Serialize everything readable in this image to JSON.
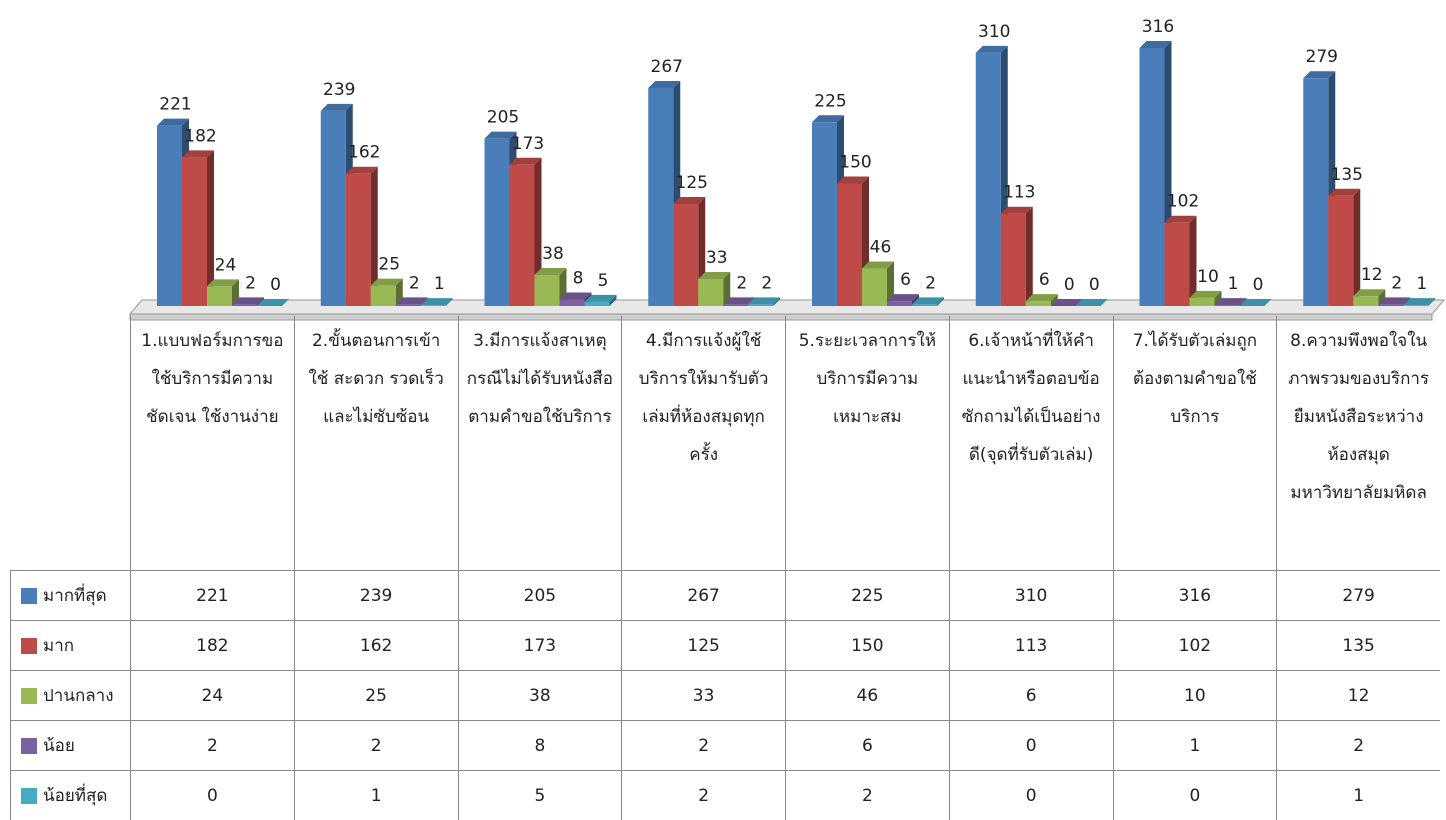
{
  "chart_data": {
    "type": "bar3d",
    "categories": [
      "1.แบบฟอร์มการขอใช้บริการมีความชัดเจน ใช้งานง่าย",
      "2.ขั้นตอนการเข้าใช้ สะดวก รวดเร็ว และไม่ซับซ้อน",
      "3.มีการแจ้งสาเหตุกรณีไม่ได้รับหนังสือตามคำขอใช้บริการ",
      "4.มีการแจ้งผู้ใช้บริการให้มารับตัวเล่มที่ห้องสมุดทุกครั้ง",
      "5.ระยะเวลาการให้บริการมีความเหมาะสม",
      "6.เจ้าหน้าที่ให้คำแนะนำหรือตอบข้อซักถามได้เป็นอย่างดี(จุดที่รับตัวเล่ม)",
      "7.ได้รับตัวเล่มถูกต้องตามคำขอใช้บริการ",
      "8.ความพึงพอใจในภาพรวมของบริการยืมหนังสือระหว่างห้องสมุดมหาวิทยาลัยมหิดล"
    ],
    "series": [
      {
        "name": "มากที่สุด",
        "color": "#4a7ebb",
        "values": [
          221,
          239,
          205,
          267,
          225,
          310,
          316,
          279
        ]
      },
      {
        "name": "มาก",
        "color": "#be4b48",
        "values": [
          182,
          162,
          173,
          125,
          150,
          113,
          102,
          135
        ]
      },
      {
        "name": "ปานกลาง",
        "color": "#98b954",
        "values": [
          24,
          25,
          38,
          33,
          46,
          6,
          10,
          12
        ]
      },
      {
        "name": "น้อย",
        "color": "#7d60a0",
        "values": [
          2,
          2,
          8,
          2,
          6,
          0,
          1,
          2
        ]
      },
      {
        "name": "น้อยที่สุด",
        "color": "#46aac5",
        "values": [
          0,
          1,
          5,
          2,
          2,
          0,
          0,
          1
        ]
      }
    ]
  }
}
